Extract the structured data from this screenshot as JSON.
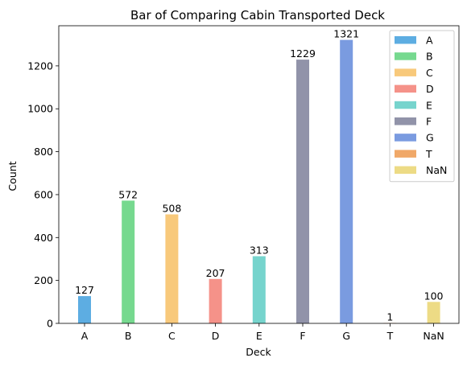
{
  "chart_data": {
    "type": "bar",
    "title": "Bar of Comparing Cabin Transported Deck",
    "xlabel": "Deck",
    "ylabel": "Count",
    "categories": [
      "A",
      "B",
      "C",
      "D",
      "E",
      "F",
      "G",
      "T",
      "NaN"
    ],
    "values": [
      127,
      572,
      508,
      207,
      313,
      1229,
      1321,
      1,
      100
    ],
    "colors": [
      "#5DADE2",
      "#76D98F",
      "#F8C97B",
      "#F59289",
      "#76D4CD",
      "#9193A9",
      "#7A9BE0",
      "#F0A868",
      "#EDDB85"
    ],
    "ylim": [
      0,
      1387
    ],
    "yticks": [
      0,
      200,
      400,
      600,
      800,
      1000,
      1200
    ],
    "grid": false,
    "legend_position": "top-right",
    "legend": [
      "A",
      "B",
      "C",
      "D",
      "E",
      "F",
      "G",
      "T",
      "NaN"
    ]
  }
}
